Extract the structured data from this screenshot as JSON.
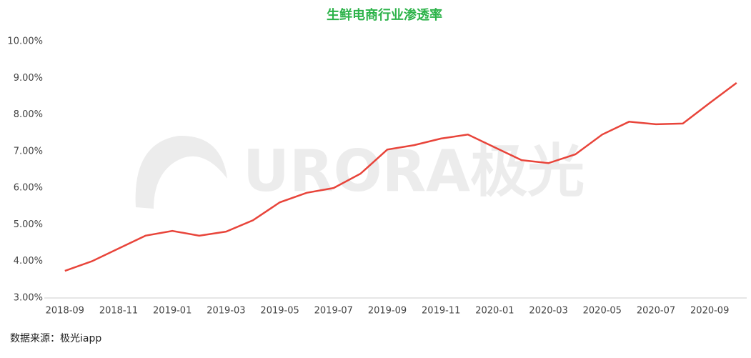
{
  "chart_data": {
    "type": "line",
    "title": "生鲜电商行业渗透率",
    "categories": [
      "2018-09",
      null,
      "2018-11",
      null,
      "2019-01",
      null,
      "2019-03",
      null,
      "2019-05",
      null,
      "2019-07",
      null,
      "2019-09",
      null,
      "2019-11",
      null,
      "2020-01",
      null,
      "2020-03",
      null,
      "2020-05",
      null,
      "2020-07",
      null,
      "2020-09",
      null
    ],
    "series": [
      {
        "name": "生鲜电商行业渗透率",
        "color": "#e8443a",
        "values": [
          3.74,
          4.0,
          4.35,
          4.7,
          4.83,
          4.7,
          4.81,
          5.12,
          5.61,
          5.87,
          6.0,
          6.39,
          7.05,
          7.17,
          7.35,
          7.46,
          7.11,
          6.76,
          6.68,
          6.92,
          7.46,
          7.81,
          7.74,
          7.76,
          8.32,
          8.87
        ]
      }
    ],
    "ylim": [
      3,
      10
    ],
    "yticks": [
      {
        "value": 3,
        "label": "3.00%"
      },
      {
        "value": 4,
        "label": "4.00%"
      },
      {
        "value": 5,
        "label": "5.00%"
      },
      {
        "value": 6,
        "label": "6.00%"
      },
      {
        "value": 7,
        "label": "7.00%"
      },
      {
        "value": 8,
        "label": "8.00%"
      },
      {
        "value": 9,
        "label": "9.00%"
      },
      {
        "value": 10,
        "label": "10.00%"
      }
    ],
    "grid": false,
    "watermark": "URORA极光",
    "source": "数据来源：极光iapp"
  }
}
